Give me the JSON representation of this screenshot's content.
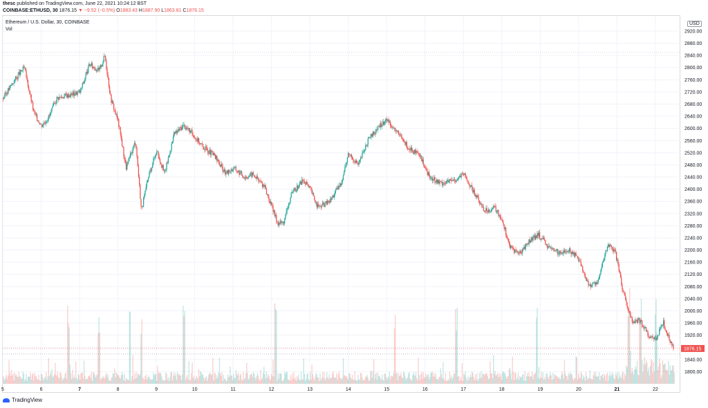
{
  "header": {
    "user": "thesc",
    "published": "published on TradingView.com, June 22, 2021 10:24:12 BST",
    "symbol": "COINBASE:ETHUSD, 30",
    "last": "1876.15",
    "change": "−9.52 (−0.5%)",
    "open_label": "O",
    "open": "1883.43",
    "high_label": "H",
    "high": "1887.90",
    "low_label": "L",
    "low": "1863.81",
    "close_label": "C",
    "close": "1876.15"
  },
  "legend": {
    "title": "Ethereum / U.S. Dollar, 30, COINBASE",
    "volume_label": "Vol"
  },
  "axis": {
    "currency": "USD"
  },
  "footer": {
    "brand": "TradingView"
  },
  "colors": {
    "up": "#26a69a",
    "down": "#ef5350",
    "price_tag": "#ef5350"
  },
  "chart_data": {
    "type": "candlestick",
    "symbol": "ETHUSD",
    "interval": "30",
    "price_label": "1876.15",
    "ylim": [
      1760,
      2970
    ],
    "y_ticks": [
      1800,
      1840,
      1880,
      1920,
      1960,
      2000,
      2040,
      2080,
      2120,
      2160,
      2200,
      2240,
      2280,
      2320,
      2360,
      2400,
      2440,
      2480,
      2520,
      2560,
      2600,
      2640,
      2680,
      2720,
      2760,
      2800,
      2840,
      2880,
      2920
    ],
    "x_tick_labels": [
      "5",
      "6",
      "7",
      "8",
      "9",
      "10",
      "11",
      "12",
      "13",
      "14",
      "15",
      "16",
      "17",
      "18",
      "19",
      "20",
      "21",
      "22"
    ],
    "x_range_days": [
      5,
      22.65
    ],
    "reference_line": 2850,
    "last_price_line": 1876.15,
    "series": [
      {
        "name": "ETHUSD",
        "x": [
          5.0,
          5.3,
          5.55,
          5.8,
          6.0,
          6.2,
          6.4,
          6.7,
          7.0,
          7.25,
          7.5,
          7.65,
          7.8,
          8.0,
          8.2,
          8.45,
          8.6,
          8.8,
          9.0,
          9.2,
          9.45,
          9.7,
          9.95,
          10.2,
          10.5,
          10.8,
          11.0,
          11.3,
          11.5,
          11.8,
          12.0,
          12.15,
          12.3,
          12.5,
          12.8,
          13.0,
          13.2,
          13.5,
          13.8,
          14.0,
          14.25,
          14.5,
          14.75,
          15.0,
          15.3,
          15.6,
          15.85,
          16.1,
          16.4,
          16.75,
          17.0,
          17.3,
          17.55,
          17.8,
          18.0,
          18.2,
          18.45,
          18.7,
          18.95,
          19.2,
          19.5,
          19.75,
          20.0,
          20.25,
          20.5,
          20.75,
          20.95,
          21.15,
          21.4,
          21.6,
          21.8,
          22.0,
          22.2,
          22.45
        ],
        "values": [
          2700,
          2760,
          2800,
          2650,
          2610,
          2640,
          2700,
          2710,
          2720,
          2810,
          2790,
          2840,
          2700,
          2620,
          2470,
          2560,
          2330,
          2450,
          2530,
          2450,
          2580,
          2610,
          2580,
          2540,
          2510,
          2450,
          2470,
          2440,
          2450,
          2410,
          2340,
          2290,
          2290,
          2380,
          2430,
          2400,
          2340,
          2360,
          2420,
          2520,
          2480,
          2560,
          2600,
          2630,
          2580,
          2530,
          2510,
          2440,
          2420,
          2430,
          2450,
          2380,
          2330,
          2340,
          2300,
          2210,
          2190,
          2230,
          2250,
          2210,
          2190,
          2200,
          2170,
          2080,
          2100,
          2220,
          2190,
          2060,
          1960,
          1970,
          1920,
          1910,
          1960,
          1876.15
        ]
      }
    ],
    "volume_series": {
      "name": "Vol",
      "spike_days": [
        6.7,
        7.5,
        8.3,
        8.6,
        9.7,
        12.1,
        15.2,
        16.8,
        18.9,
        21.3,
        21.6,
        22.0
      ]
    }
  }
}
